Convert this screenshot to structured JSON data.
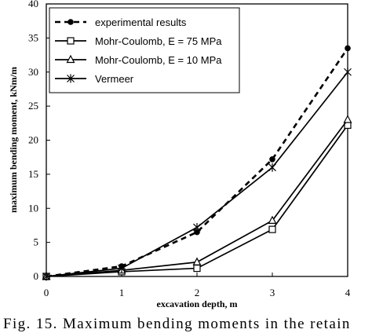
{
  "caption": "Fig. 15. Maximum bending moments in the retain",
  "chart_data": {
    "type": "line",
    "xlabel": "excavation depth, m",
    "ylabel": "maximum bending moment, kNm/m",
    "xlim": [
      0,
      4
    ],
    "ylim": [
      0,
      40
    ],
    "xticks": [
      0,
      1,
      2,
      3,
      4
    ],
    "yticks": [
      0,
      5,
      10,
      15,
      20,
      25,
      30,
      35,
      40
    ],
    "grid": false,
    "legend_position": "top-left",
    "series": [
      {
        "name": "experimental results",
        "style": "dashed",
        "marker": "filled-circle",
        "x": [
          0,
          1,
          2,
          3,
          4
        ],
        "y": [
          0,
          1.5,
          6.5,
          17.2,
          33.5
        ]
      },
      {
        "name": "Mohr-Coulomb, E = 75 MPa",
        "style": "solid",
        "marker": "open-square",
        "x": [
          0,
          1,
          2,
          3,
          4
        ],
        "y": [
          0,
          0.7,
          1.2,
          6.9,
          22.2
        ]
      },
      {
        "name": "Mohr-Coulomb, E = 10 MPa",
        "style": "solid",
        "marker": "open-triangle",
        "x": [
          0,
          1,
          2,
          3,
          4
        ],
        "y": [
          0,
          0.9,
          2.1,
          8.2,
          23.0
        ]
      },
      {
        "name": "Vermeer",
        "style": "solid",
        "marker": "star",
        "x": [
          0,
          1,
          2,
          3,
          4
        ],
        "y": [
          0,
          1.2,
          7.2,
          16.0,
          30.0
        ]
      }
    ]
  }
}
